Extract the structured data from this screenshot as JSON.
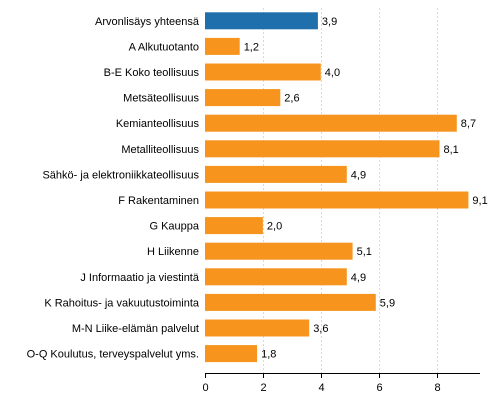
{
  "chart_data": {
    "type": "bar",
    "orientation": "horizontal",
    "title": "",
    "xlabel": "",
    "ylabel": "",
    "categories": [
      "Arvonlisäys yhteensä",
      "A Alkutuotanto",
      "B-E Koko teollisuus",
      "Metsäteollisuus",
      "Kemianteollisuus",
      "Metalliteollisuus",
      "Sähkö- ja elektroniikkateollisuus",
      "F Rakentaminen",
      "G Kauppa",
      "H Liikenne",
      "J Informaatio ja viestintä",
      "K Rahoitus- ja vakuutustoiminta",
      "M-N Liike-elämän palvelut",
      "O-Q Koulutus, terveyspalvelut yms."
    ],
    "values": [
      3.9,
      1.2,
      4.0,
      2.6,
      8.7,
      8.1,
      4.9,
      9.1,
      2.0,
      5.1,
      4.9,
      5.9,
      3.6,
      1.8
    ],
    "value_labels": [
      "3,9",
      "1,2",
      "4,0",
      "2,6",
      "8,7",
      "8,1",
      "4,9",
      "9,1",
      "2,0",
      "5,1",
      "4,9",
      "5,9",
      "3,6",
      "1,8"
    ],
    "highlight_index": 0,
    "xlim": [
      0,
      9.5
    ],
    "xticks": [
      0,
      2,
      4,
      6,
      8
    ],
    "xtick_labels": [
      "0",
      "2",
      "4",
      "6",
      "8"
    ],
    "grid": true,
    "legend": "none",
    "colors": {
      "highlight": "#1f6fad",
      "bar": "#f7941d",
      "grid": "#d9d9d9",
      "axis": "#000000"
    }
  }
}
